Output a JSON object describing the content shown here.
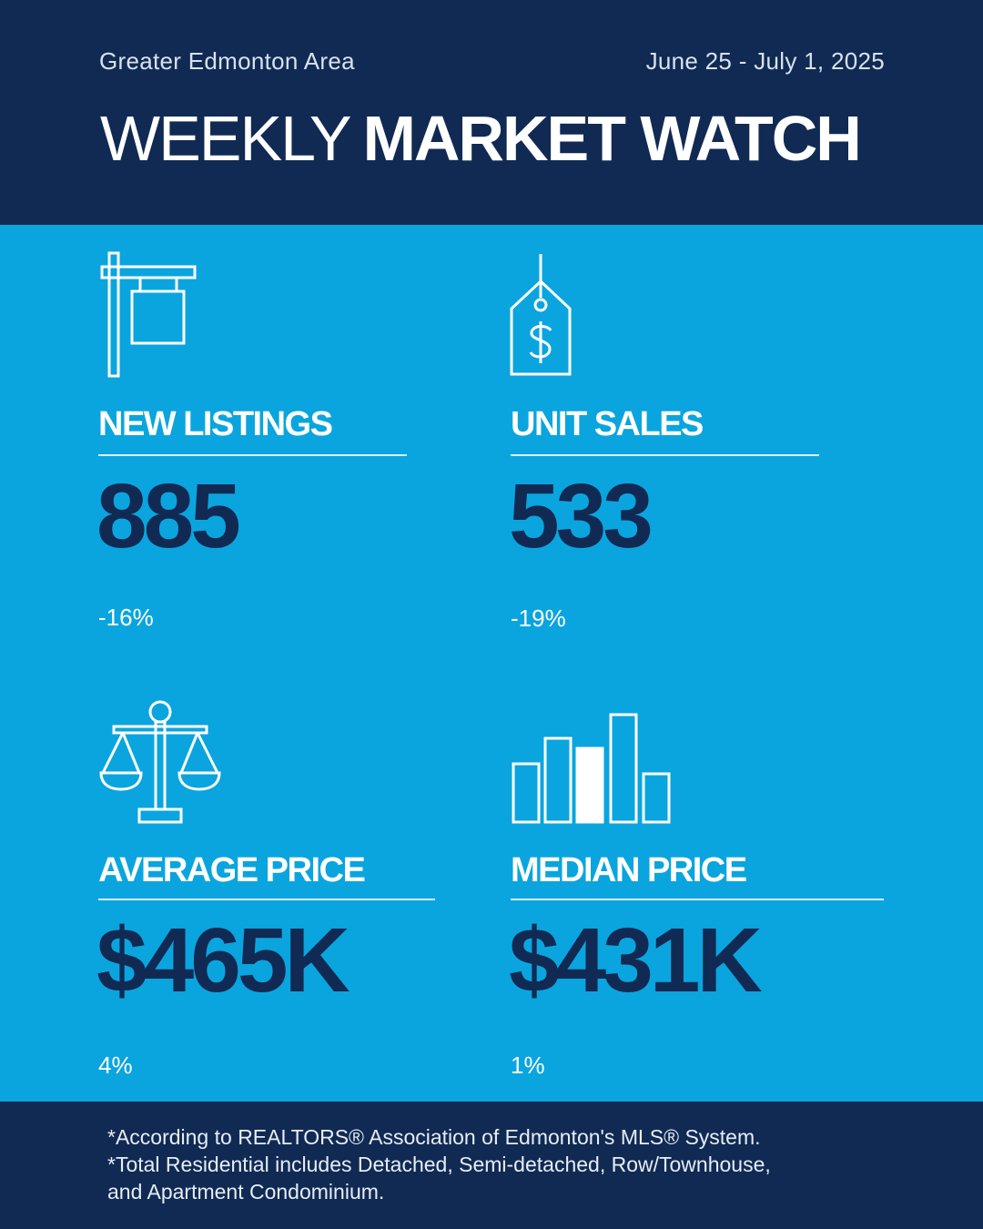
{
  "header": {
    "region": "Greater Edmonton Area",
    "date_range": "June 25 - July 1, 2025",
    "title_light": "WEEKLY",
    "title_bold": "MARKET WATCH"
  },
  "stats": {
    "new_listings": {
      "label": "NEW LISTINGS",
      "value": "885",
      "change": "-16%",
      "icon": "for-sale-sign-icon"
    },
    "unit_sales": {
      "label": "UNIT SALES",
      "value": "533",
      "change": "-19%",
      "icon": "price-tag-icon"
    },
    "average_price": {
      "label": "AVERAGE PRICE",
      "value": "$465K",
      "change": "4%",
      "icon": "balance-scale-icon"
    },
    "median_price": {
      "label": "MEDIAN PRICE",
      "value": "$431K",
      "change": "1%",
      "icon": "bar-chart-icon"
    }
  },
  "footer": {
    "note_1": "*According to REALTORS® Association of Edmonton's MLS® System.",
    "note_2": "*Total Residential includes Detached, Semi-detached, Row/Townhouse,",
    "note_3": "and Apartment Condominium."
  },
  "colors": {
    "navy": "#112a53",
    "blue": "#0aa5de",
    "white": "#ffffff"
  }
}
